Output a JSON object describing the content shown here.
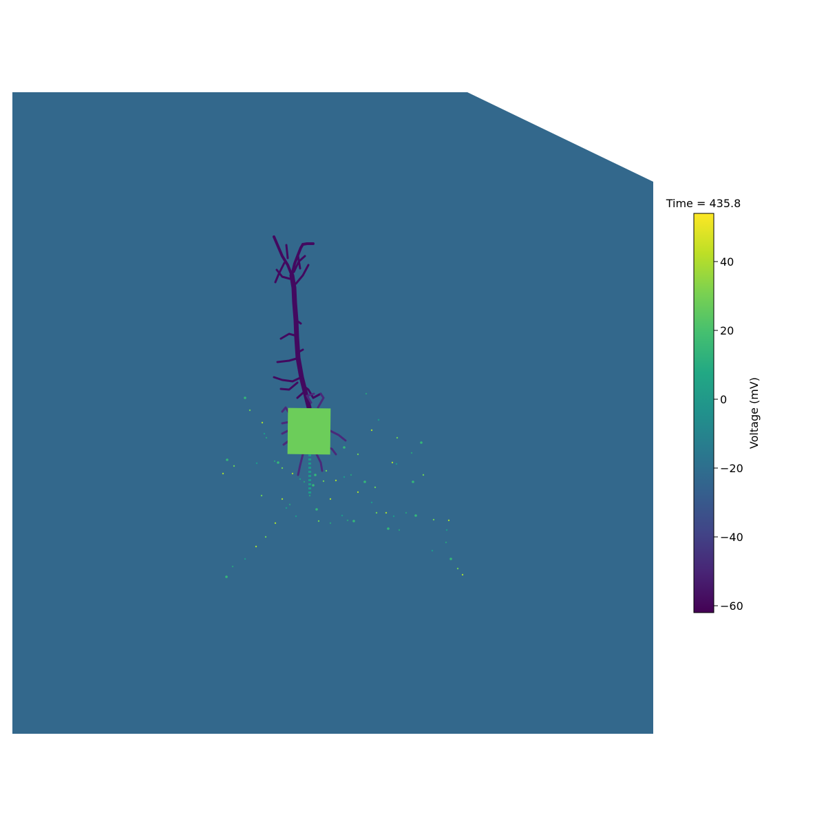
{
  "chart_data": {
    "type": "heatmap",
    "title": "Time = 435.8",
    "colorbar": {
      "label": "Voltage (mV)",
      "colormap": "viridis",
      "range": [
        -62,
        54
      ],
      "ticks": [
        -60,
        -40,
        -20,
        0,
        20,
        40
      ],
      "tick_labels": [
        "−60",
        "−40",
        "−20",
        "0",
        "20",
        "40"
      ]
    },
    "scene": {
      "background_voltage": -21,
      "background_color": "#33688c",
      "soma_voltage": 30,
      "soma_color": "#6ccd5a",
      "dendrite_voltage": -60,
      "dendrite_color": "#43095f",
      "near_soma_voltage": -52,
      "near_soma_color": "#4a2a7a",
      "axon_voltage": 3,
      "axon_color": "#1f9a8a",
      "scattered_points_colors": [
        "#35b779",
        "#6ccd5a",
        "#a5db36",
        "#1f9a8a",
        "#2a9d7f"
      ]
    }
  }
}
